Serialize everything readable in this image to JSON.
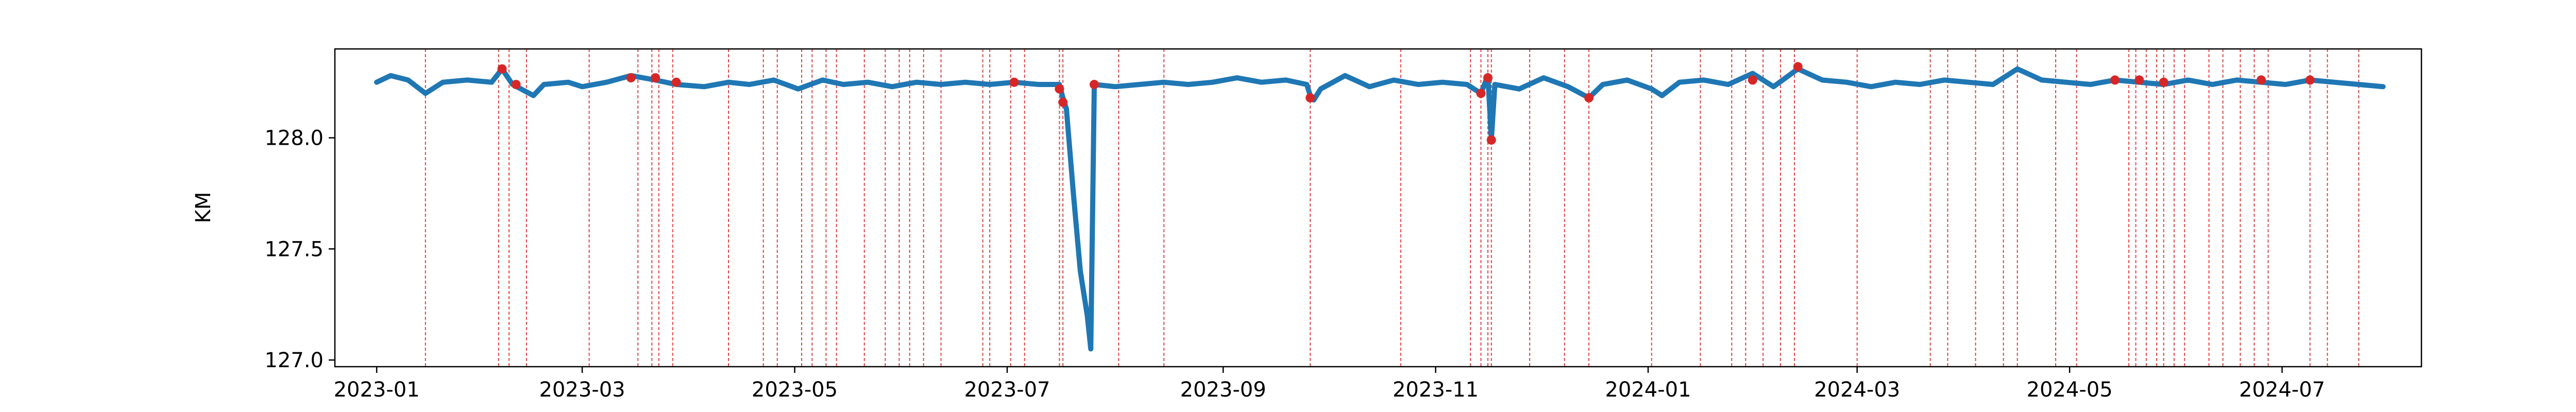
{
  "chart_data": {
    "type": "line",
    "title": "",
    "xlabel": "",
    "ylabel": "KM",
    "x_range": [
      "2022-12-20",
      "2024-08-10"
    ],
    "ylim": [
      126.97,
      128.4
    ],
    "grid": false,
    "legend": "none",
    "x_ticks": [
      "2023-01",
      "2023-03",
      "2023-05",
      "2023-07",
      "2023-09",
      "2023-11",
      "2024-01",
      "2024-03",
      "2024-05",
      "2024-07"
    ],
    "x_tick_dates": [
      "2023-01-01",
      "2023-03-01",
      "2023-05-01",
      "2023-07-01",
      "2023-09-01",
      "2023-11-01",
      "2024-01-01",
      "2024-03-01",
      "2024-05-01",
      "2024-07-01"
    ],
    "y_ticks": [
      127.0,
      127.5,
      128.0
    ],
    "y_tick_labels": [
      "127.0",
      "127.5",
      "128.0"
    ],
    "series": [
      {
        "color": "#1f77b4",
        "points": [
          [
            "2023-01-01",
            128.25
          ],
          [
            "2023-01-05",
            128.28
          ],
          [
            "2023-01-10",
            128.26
          ],
          [
            "2023-01-15",
            128.2
          ],
          [
            "2023-01-20",
            128.25
          ],
          [
            "2023-01-27",
            128.26
          ],
          [
            "2023-02-03",
            128.25
          ],
          [
            "2023-02-06",
            128.31
          ],
          [
            "2023-02-09",
            128.24
          ],
          [
            "2023-02-15",
            128.19
          ],
          [
            "2023-02-18",
            128.24
          ],
          [
            "2023-02-25",
            128.25
          ],
          [
            "2023-03-01",
            128.23
          ],
          [
            "2023-03-08",
            128.25
          ],
          [
            "2023-03-15",
            128.28
          ],
          [
            "2023-03-22",
            128.26
          ],
          [
            "2023-03-28",
            128.24
          ],
          [
            "2023-04-05",
            128.23
          ],
          [
            "2023-04-12",
            128.25
          ],
          [
            "2023-04-18",
            128.24
          ],
          [
            "2023-04-25",
            128.26
          ],
          [
            "2023-05-02",
            128.22
          ],
          [
            "2023-05-09",
            128.26
          ],
          [
            "2023-05-15",
            128.24
          ],
          [
            "2023-05-22",
            128.25
          ],
          [
            "2023-05-29",
            128.23
          ],
          [
            "2023-06-05",
            128.25
          ],
          [
            "2023-06-12",
            128.24
          ],
          [
            "2023-06-19",
            128.25
          ],
          [
            "2023-06-26",
            128.24
          ],
          [
            "2023-07-03",
            128.25
          ],
          [
            "2023-07-10",
            128.24
          ],
          [
            "2023-07-16",
            128.24
          ],
          [
            "2023-07-17",
            128.18
          ],
          [
            "2023-07-18",
            128.13
          ],
          [
            "2023-07-20",
            127.75
          ],
          [
            "2023-07-22",
            127.4
          ],
          [
            "2023-07-24",
            127.2
          ],
          [
            "2023-07-25",
            127.05
          ],
          [
            "2023-07-26",
            128.24
          ],
          [
            "2023-08-01",
            128.23
          ],
          [
            "2023-08-08",
            128.24
          ],
          [
            "2023-08-15",
            128.25
          ],
          [
            "2023-08-22",
            128.24
          ],
          [
            "2023-08-29",
            128.25
          ],
          [
            "2023-09-05",
            128.27
          ],
          [
            "2023-09-12",
            128.25
          ],
          [
            "2023-09-19",
            128.26
          ],
          [
            "2023-09-25",
            128.24
          ],
          [
            "2023-09-26",
            128.19
          ],
          [
            "2023-09-27",
            128.17
          ],
          [
            "2023-09-29",
            128.22
          ],
          [
            "2023-10-06",
            128.28
          ],
          [
            "2023-10-13",
            128.23
          ],
          [
            "2023-10-20",
            128.26
          ],
          [
            "2023-10-27",
            128.24
          ],
          [
            "2023-11-03",
            128.25
          ],
          [
            "2023-11-10",
            128.24
          ],
          [
            "2023-11-14",
            128.2
          ],
          [
            "2023-11-16",
            128.28
          ],
          [
            "2023-11-17",
            127.99
          ],
          [
            "2023-11-18",
            128.24
          ],
          [
            "2023-11-25",
            128.22
          ],
          [
            "2023-12-02",
            128.27
          ],
          [
            "2023-12-09",
            128.23
          ],
          [
            "2023-12-15",
            128.18
          ],
          [
            "2023-12-19",
            128.24
          ],
          [
            "2023-12-26",
            128.26
          ],
          [
            "2024-01-02",
            128.22
          ],
          [
            "2024-01-05",
            128.19
          ],
          [
            "2024-01-10",
            128.25
          ],
          [
            "2024-01-17",
            128.26
          ],
          [
            "2024-01-24",
            128.24
          ],
          [
            "2024-01-31",
            128.29
          ],
          [
            "2024-02-06",
            128.23
          ],
          [
            "2024-02-13",
            128.31
          ],
          [
            "2024-02-20",
            128.26
          ],
          [
            "2024-02-27",
            128.25
          ],
          [
            "2024-03-05",
            128.23
          ],
          [
            "2024-03-12",
            128.25
          ],
          [
            "2024-03-19",
            128.24
          ],
          [
            "2024-03-26",
            128.26
          ],
          [
            "2024-04-02",
            128.25
          ],
          [
            "2024-04-09",
            128.24
          ],
          [
            "2024-04-16",
            128.31
          ],
          [
            "2024-04-23",
            128.26
          ],
          [
            "2024-04-30",
            128.25
          ],
          [
            "2024-05-07",
            128.24
          ],
          [
            "2024-05-14",
            128.26
          ],
          [
            "2024-05-21",
            128.25
          ],
          [
            "2024-05-28",
            128.24
          ],
          [
            "2024-06-04",
            128.26
          ],
          [
            "2024-06-11",
            128.24
          ],
          [
            "2024-06-18",
            128.26
          ],
          [
            "2024-06-25",
            128.25
          ],
          [
            "2024-07-02",
            128.24
          ],
          [
            "2024-07-09",
            128.26
          ],
          [
            "2024-07-16",
            128.25
          ],
          [
            "2024-07-23",
            128.24
          ],
          [
            "2024-07-30",
            128.23
          ]
        ]
      }
    ],
    "markers": {
      "color": "#d62728",
      "points": [
        [
          "2023-02-06",
          128.31
        ],
        [
          "2023-02-10",
          128.24
        ],
        [
          "2023-03-15",
          128.27
        ],
        [
          "2023-03-22",
          128.27
        ],
        [
          "2023-03-28",
          128.25
        ],
        [
          "2023-07-03",
          128.25
        ],
        [
          "2023-07-16",
          128.22
        ],
        [
          "2023-07-17",
          128.16
        ],
        [
          "2023-07-26",
          128.24
        ],
        [
          "2023-09-26",
          128.18
        ],
        [
          "2023-11-14",
          128.2
        ],
        [
          "2023-11-16",
          128.27
        ],
        [
          "2023-11-17",
          127.99
        ],
        [
          "2023-12-15",
          128.18
        ],
        [
          "2024-01-31",
          128.26
        ],
        [
          "2024-02-13",
          128.32
        ],
        [
          "2024-05-14",
          128.26
        ],
        [
          "2024-05-21",
          128.26
        ],
        [
          "2024-05-28",
          128.25
        ],
        [
          "2024-06-25",
          128.26
        ],
        [
          "2024-07-09",
          128.26
        ]
      ]
    },
    "event_lines": {
      "color": "#d62728",
      "dates": [
        "2023-01-15",
        "2023-02-05",
        "2023-02-08",
        "2023-02-13",
        "2023-03-03",
        "2023-03-17",
        "2023-03-21",
        "2023-03-23",
        "2023-03-27",
        "2023-04-12",
        "2023-04-22",
        "2023-04-26",
        "2023-05-03",
        "2023-05-06",
        "2023-05-10",
        "2023-05-13",
        "2023-05-21",
        "2023-05-27",
        "2023-05-31",
        "2023-06-03",
        "2023-06-07",
        "2023-06-12",
        "2023-06-24",
        "2023-06-26",
        "2023-07-02",
        "2023-07-06",
        "2023-07-16",
        "2023-07-17",
        "2023-08-02",
        "2023-08-15",
        "2023-09-26",
        "2023-10-22",
        "2023-11-11",
        "2023-11-14",
        "2023-11-16",
        "2023-11-17",
        "2023-11-28",
        "2023-12-08",
        "2023-12-15",
        "2024-01-02",
        "2024-01-16",
        "2024-01-25",
        "2024-01-29",
        "2024-02-03",
        "2024-02-08",
        "2024-02-12",
        "2024-03-01",
        "2024-03-22",
        "2024-03-27",
        "2024-04-04",
        "2024-04-12",
        "2024-04-16",
        "2024-04-27",
        "2024-05-03",
        "2024-05-18",
        "2024-05-20",
        "2024-05-23",
        "2024-05-26",
        "2024-05-28",
        "2024-05-31",
        "2024-06-03",
        "2024-06-10",
        "2024-06-14",
        "2024-06-19",
        "2024-06-23",
        "2024-06-27",
        "2024-07-09",
        "2024-07-14",
        "2024-07-23"
      ]
    }
  }
}
